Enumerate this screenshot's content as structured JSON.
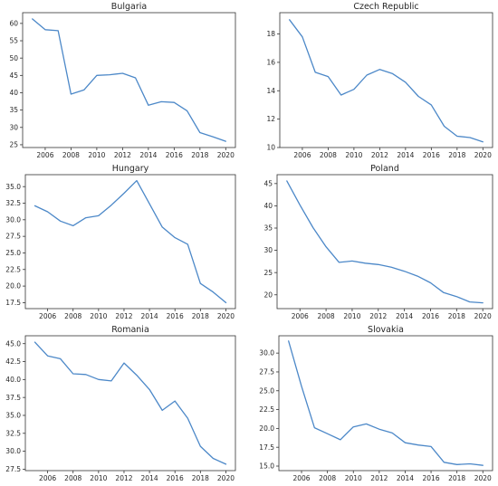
{
  "colors": {
    "line": "#4c88c8"
  },
  "chart_data": [
    {
      "type": "line",
      "title": "Bulgaria",
      "x": [
        2005,
        2006,
        2007,
        2008,
        2009,
        2010,
        2011,
        2012,
        2013,
        2014,
        2015,
        2016,
        2017,
        2018,
        2019,
        2020
      ],
      "values": [
        61.3,
        58.2,
        57.9,
        39.6,
        40.8,
        45.0,
        45.2,
        45.6,
        44.3,
        36.4,
        37.4,
        37.2,
        34.8,
        28.5,
        27.3,
        26.0
      ],
      "xticks": [
        2006,
        2008,
        2010,
        2012,
        2014,
        2016,
        2018,
        2020
      ],
      "yticks": [
        25,
        30,
        35,
        40,
        45,
        50,
        55,
        60
      ],
      "xlim": [
        2004.25,
        2020.75
      ],
      "ylim": [
        24.2,
        63.1
      ]
    },
    {
      "type": "line",
      "title": "Czech Republic",
      "x": [
        2005,
        2006,
        2007,
        2008,
        2009,
        2010,
        2011,
        2012,
        2013,
        2014,
        2015,
        2016,
        2017,
        2018,
        2019,
        2020
      ],
      "values": [
        19.0,
        17.8,
        15.3,
        15.0,
        13.7,
        14.1,
        15.1,
        15.5,
        15.2,
        14.6,
        13.6,
        13.0,
        11.5,
        10.8,
        10.7,
        10.4
      ],
      "xticks": [
        2006,
        2008,
        2010,
        2012,
        2014,
        2016,
        2018,
        2020
      ],
      "yticks": [
        10,
        12,
        14,
        16,
        18
      ],
      "xlim": [
        2004.25,
        2020.75
      ],
      "ylim": [
        10.0,
        19.5
      ]
    },
    {
      "type": "line",
      "title": "Hungary",
      "x": [
        2005,
        2006,
        2007,
        2008,
        2009,
        2010,
        2011,
        2012,
        2013,
        2014,
        2015,
        2016,
        2017,
        2018,
        2019,
        2020
      ],
      "values": [
        32.1,
        31.2,
        29.8,
        29.1,
        30.3,
        30.6,
        32.2,
        34.0,
        35.9,
        32.4,
        28.9,
        27.3,
        26.3,
        20.4,
        19.1,
        17.5
      ],
      "xticks": [
        2006,
        2008,
        2010,
        2012,
        2014,
        2016,
        2018,
        2020
      ],
      "yticks": [
        17.5,
        20.0,
        22.5,
        25.0,
        27.5,
        30.0,
        32.5,
        35.0
      ],
      "xlim": [
        2004.25,
        2020.75
      ],
      "ylim": [
        16.6,
        36.8
      ]
    },
    {
      "type": "line",
      "title": "Poland",
      "x": [
        2005,
        2006,
        2007,
        2008,
        2009,
        2010,
        2011,
        2012,
        2013,
        2014,
        2015,
        2016,
        2017,
        2018,
        2019,
        2020
      ],
      "values": [
        45.6,
        40.2,
        35.1,
        30.8,
        27.3,
        27.6,
        27.1,
        26.8,
        26.2,
        25.3,
        24.2,
        22.7,
        20.5,
        19.6,
        18.4,
        18.2
      ],
      "xticks": [
        2006,
        2008,
        2010,
        2012,
        2014,
        2016,
        2018,
        2020
      ],
      "yticks": [
        20,
        25,
        30,
        35,
        40,
        45
      ],
      "xlim": [
        2004.25,
        2020.75
      ],
      "ylim": [
        16.9,
        47.0
      ]
    },
    {
      "type": "line",
      "title": "Romania",
      "x": [
        2005,
        2006,
        2007,
        2008,
        2009,
        2010,
        2011,
        2012,
        2013,
        2014,
        2015,
        2016,
        2017,
        2018,
        2019,
        2020
      ],
      "values": [
        45.2,
        43.3,
        42.9,
        40.8,
        40.7,
        40.0,
        39.8,
        42.3,
        40.6,
        38.6,
        35.7,
        37.0,
        34.6,
        30.7,
        29.0,
        28.2
      ],
      "xticks": [
        2006,
        2008,
        2010,
        2012,
        2014,
        2016,
        2018,
        2020
      ],
      "yticks": [
        27.5,
        30.0,
        32.5,
        35.0,
        37.5,
        40.0,
        42.5,
        45.0
      ],
      "xlim": [
        2004.25,
        2020.75
      ],
      "ylim": [
        27.3,
        46.1
      ]
    },
    {
      "type": "line",
      "title": "Slovakia",
      "x": [
        2005,
        2006,
        2007,
        2008,
        2009,
        2010,
        2011,
        2012,
        2013,
        2014,
        2015,
        2016,
        2017,
        2018,
        2019,
        2020
      ],
      "values": [
        31.6,
        25.6,
        20.1,
        19.3,
        18.5,
        20.2,
        20.6,
        19.9,
        19.4,
        18.1,
        17.8,
        17.6,
        15.5,
        15.2,
        15.3,
        15.1
      ],
      "xticks": [
        2006,
        2008,
        2010,
        2012,
        2014,
        2016,
        2018,
        2020
      ],
      "yticks": [
        15.0,
        17.5,
        20.0,
        22.5,
        25.0,
        27.5,
        30.0
      ],
      "xlim": [
        2004.25,
        2020.75
      ],
      "ylim": [
        14.4,
        32.3
      ]
    }
  ]
}
